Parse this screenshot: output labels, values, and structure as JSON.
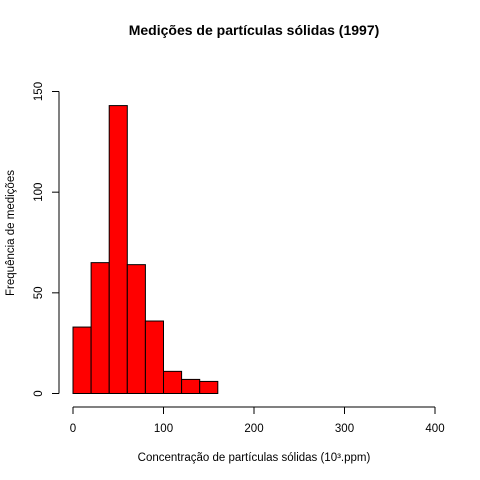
{
  "chart_data": {
    "type": "bar",
    "title": "Medições de partículas sólidas (1997)",
    "xlabel": "Concentração de partículas sólidas (10³.ppm)",
    "ylabel": "Frequência de medições",
    "bin_edges": [
      0,
      20,
      40,
      60,
      80,
      100,
      120,
      140,
      160,
      180,
      200,
      220,
      240,
      260,
      280,
      300,
      320,
      340,
      360,
      380,
      400
    ],
    "values": [
      33,
      65,
      143,
      64,
      36,
      11,
      7,
      6,
      0,
      0,
      0,
      0,
      0,
      0,
      0,
      0,
      0,
      0,
      0,
      0
    ],
    "xlim": [
      0,
      400
    ],
    "ylim": [
      0,
      150
    ],
    "x_ticks": [
      "0",
      "100",
      "200",
      "300",
      "400"
    ],
    "y_ticks": [
      "0",
      "50",
      "100",
      "150"
    ],
    "bar_color": "#ff0000",
    "bar_border_color": "#000000",
    "grid": false
  }
}
